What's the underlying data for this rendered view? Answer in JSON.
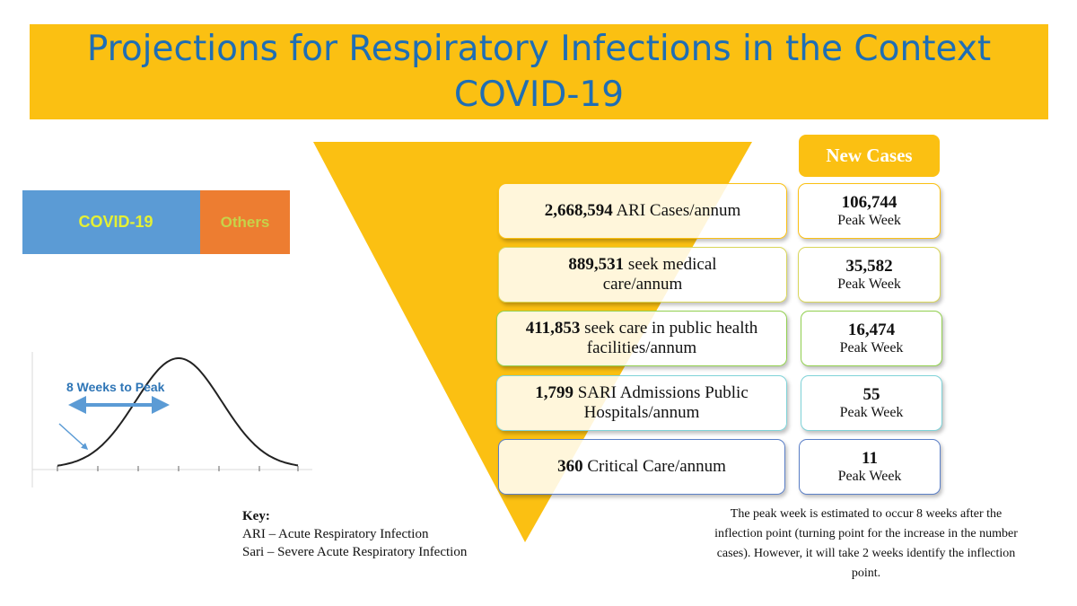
{
  "title_line1": "Projections for Respiratory Infections in the Context",
  "title_line2": "COVID-19",
  "split": {
    "covid": "COVID-19",
    "others": "Others"
  },
  "curve": {
    "label": "8 Weeks to Peak"
  },
  "new_cases_header": "New Cases",
  "funnel_rows": [
    {
      "number": "2,668,594",
      "text": " ARI Cases/annum",
      "color": "#fbc012"
    },
    {
      "number": "889,531",
      "text": " seek medical care/annum",
      "color": "#d9d65a"
    },
    {
      "number": "411,853",
      "text": " seek care in public health facilities/annum",
      "color": "#92d050"
    },
    {
      "number": "1,799",
      "text": " SARI Admissions Public Hospitals/annum",
      "color": "#7fd3d8"
    },
    {
      "number": "360",
      "text": " Critical Care/annum",
      "color": "#5b7fc7"
    }
  ],
  "new_cases": [
    {
      "value": "106,744",
      "label": "Peak Week"
    },
    {
      "value": "35,582",
      "label": "Peak Week"
    },
    {
      "value": "16,474",
      "label": "Peak Week"
    },
    {
      "value": "55",
      "label": "Peak Week"
    },
    {
      "value": "11",
      "label": "Peak Week"
    }
  ],
  "key": {
    "heading": "Key:",
    "ari": "ARI – Acute Respiratory Infection",
    "sari": "Sari – Severe Acute Respiratory Infection"
  },
  "note": "The peak week is estimated to occur 8 weeks after the inflection point (turning point for the increase in the number cases). However, it will take 2 weeks identify the inflection point.",
  "colors": {
    "banner": "#fbc012",
    "title": "#1f6eb4",
    "covid": "#5b9bd5",
    "others": "#ed7d31",
    "arrow": "#5b9bd5"
  }
}
